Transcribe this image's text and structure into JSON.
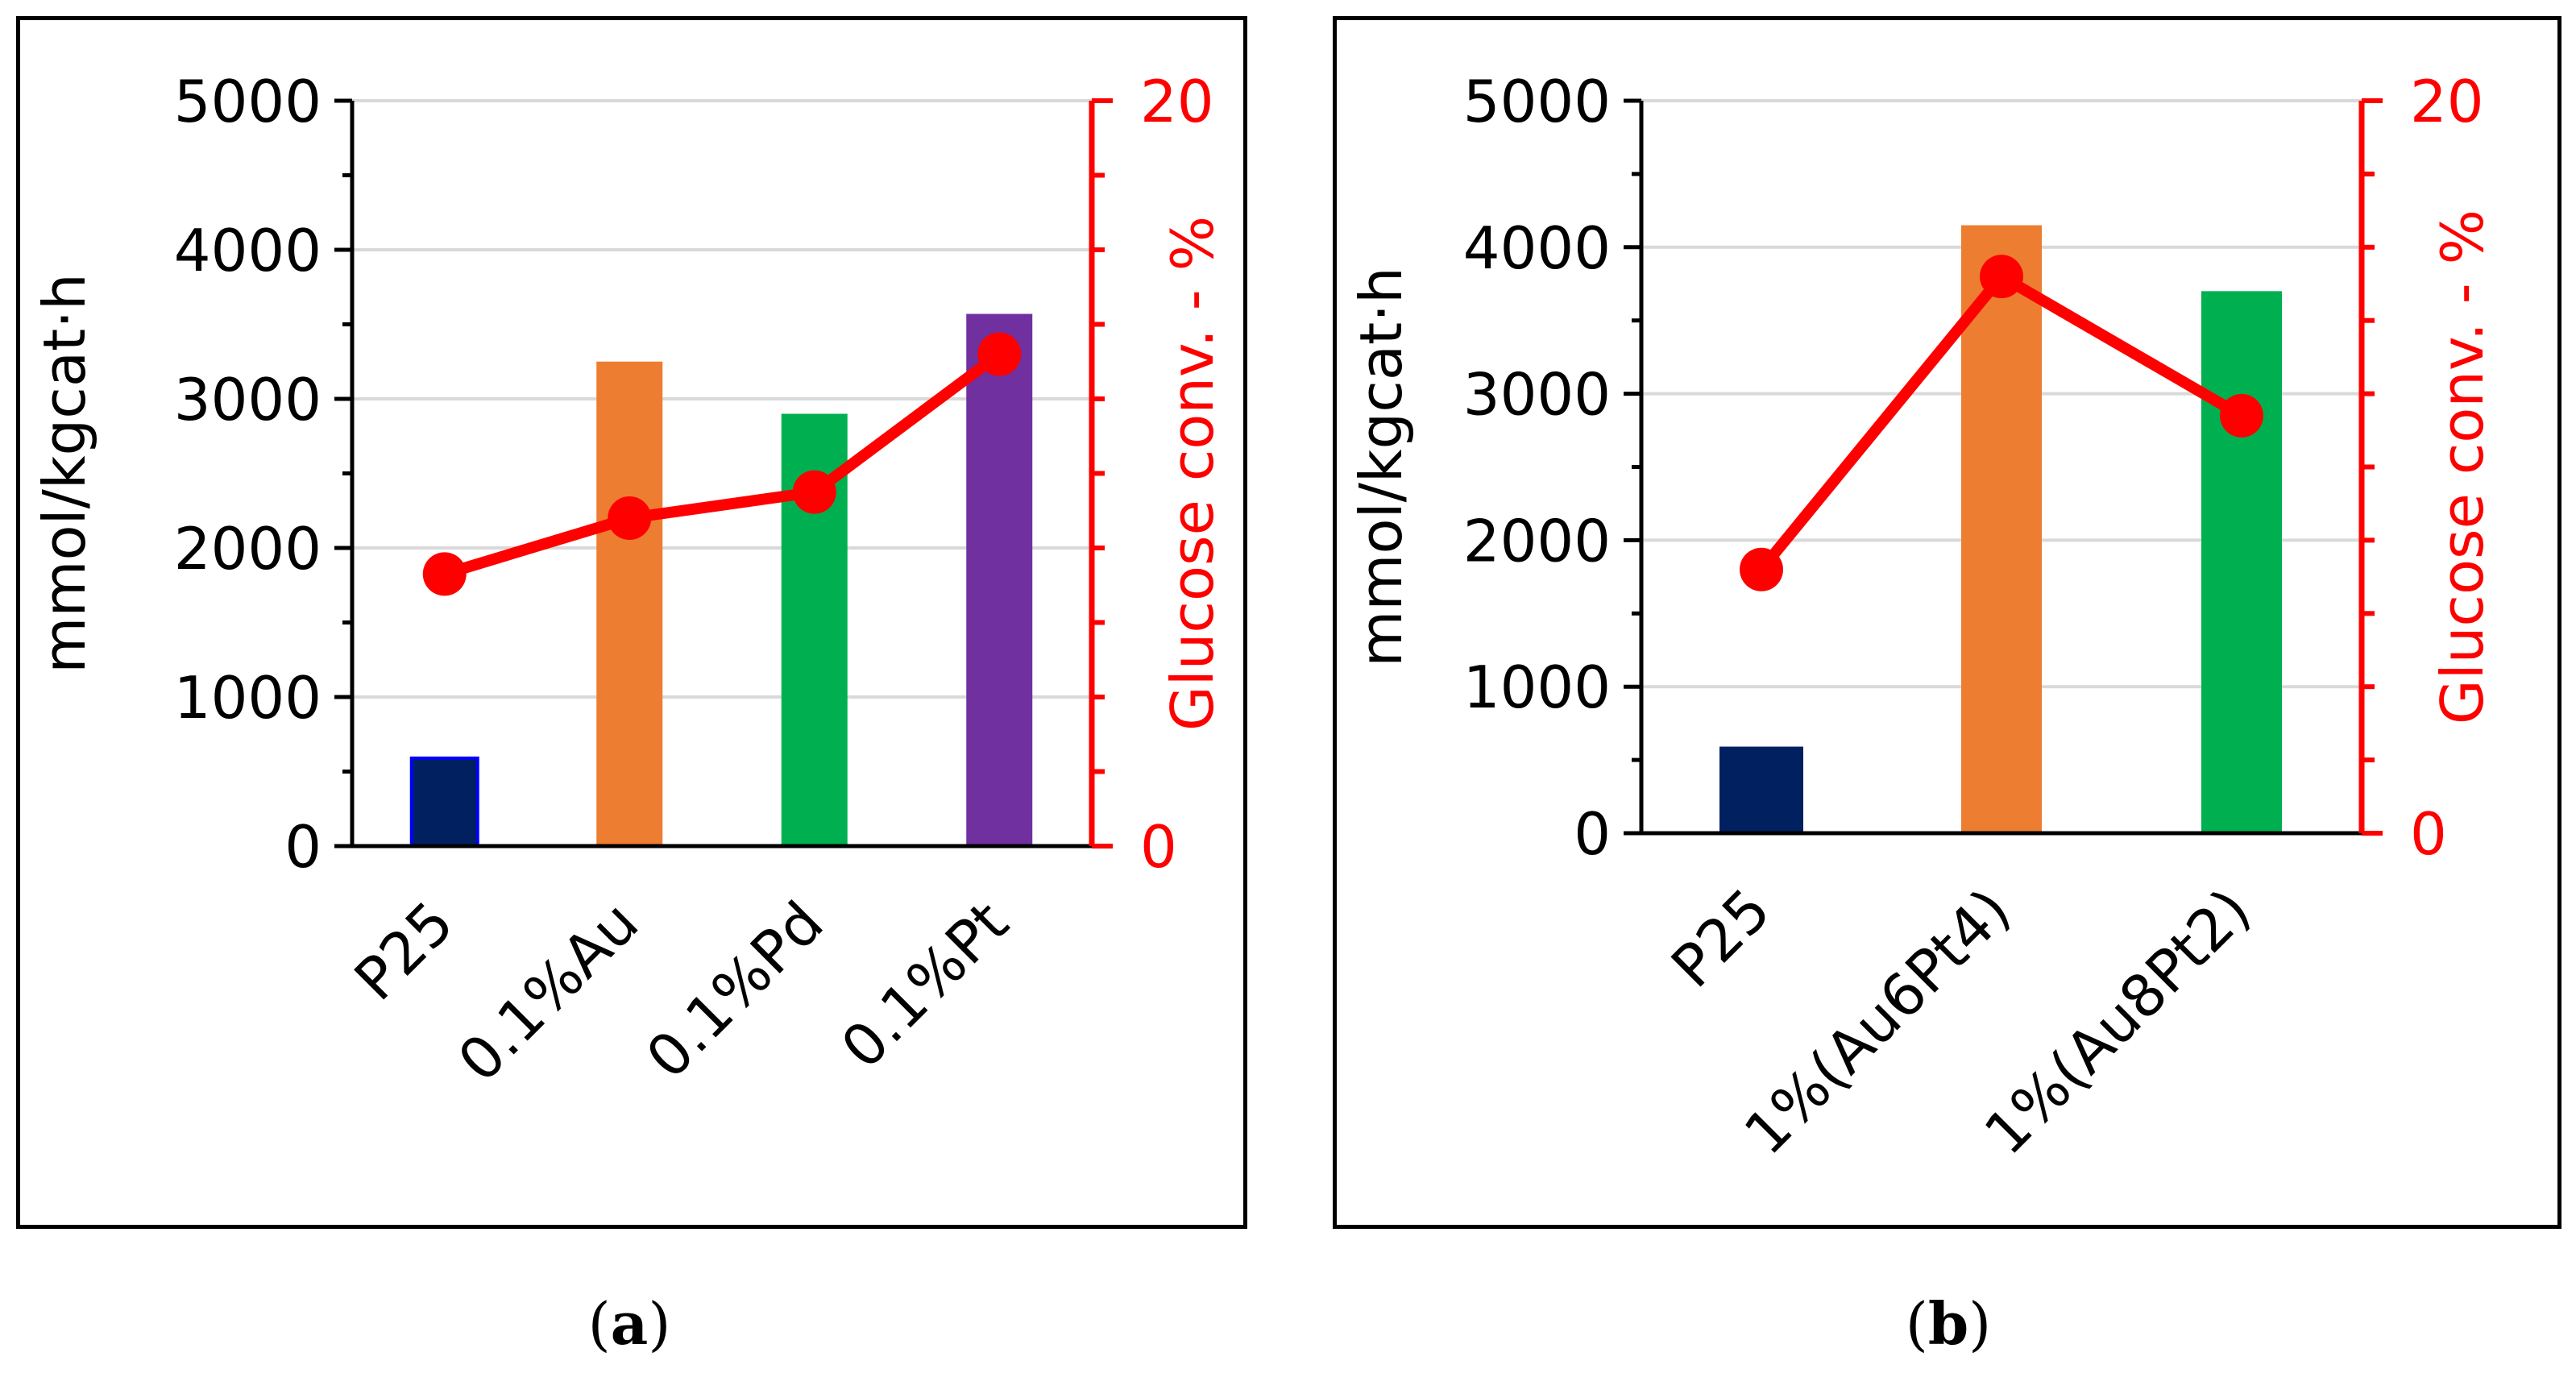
{
  "chart_data": [
    {
      "id": "a",
      "type": "bar",
      "caption_letter": "a",
      "categories": [
        "P25",
        "0.1%Au",
        "0.1%Pd",
        "0.1%Pt"
      ],
      "bar_values": [
        590,
        3250,
        2900,
        3570
      ],
      "bar_colors": [
        "#002060",
        "#ED7D31",
        "#00B050",
        "#7030A0"
      ],
      "bar_outline_first": "#0000ff",
      "line_series": {
        "name": "Glucose conv.",
        "values": [
          7.3,
          8.8,
          9.5,
          13.2
        ],
        "color": "#ff0000"
      },
      "ylabel": "mmol/kgcat·h",
      "y2label": "Glucose conv. - %",
      "ylim": [
        0,
        5000
      ],
      "y2lim": [
        0,
        20
      ],
      "yticks": [
        "0",
        "1000",
        "2000",
        "3000",
        "4000",
        "5000"
      ],
      "y2ticks": [
        "0",
        "20"
      ],
      "grid": true
    },
    {
      "id": "b",
      "type": "bar",
      "caption_letter": "b",
      "categories": [
        "P25",
        "1%(Au6Pt4)",
        "1%(Au8Pt2)"
      ],
      "bar_values": [
        580,
        4150,
        3700
      ],
      "bar_colors": [
        "#002060",
        "#ED7D31",
        "#00B050"
      ],
      "bar_outline_first": "#002060",
      "line_series": {
        "name": "Glucose conv.",
        "values": [
          7.2,
          15.2,
          11.4
        ],
        "color": "#ff0000"
      },
      "ylabel": "mmol/kgcat·h",
      "y2label": "Glucose conv. - %",
      "ylim": [
        0,
        5000
      ],
      "y2lim": [
        0,
        20
      ],
      "yticks": [
        "0",
        "1000",
        "2000",
        "3000",
        "4000",
        "5000"
      ],
      "y2ticks": [
        "0",
        "20"
      ],
      "grid": true
    }
  ]
}
